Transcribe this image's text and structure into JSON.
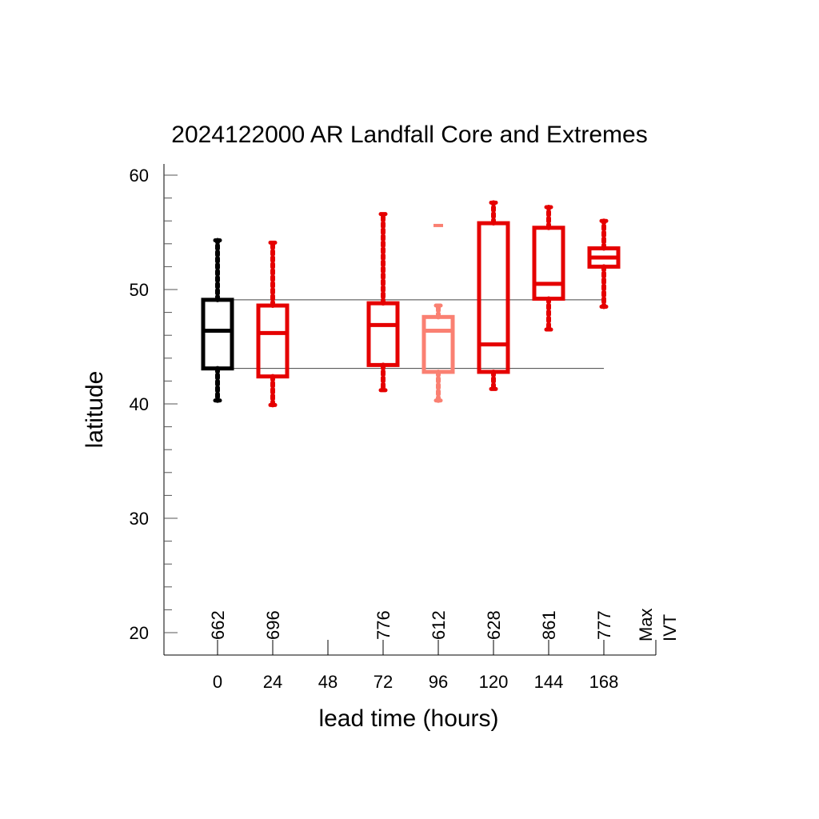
{
  "chart_data": {
    "type": "boxplot",
    "title": "2024122000 AR Landfall Core and Extremes",
    "xlabel": "lead time (hours)",
    "ylabel": "latitude",
    "ylim": [
      18,
      61
    ],
    "y_ticks": [
      "20",
      "30",
      "40",
      "50",
      "60"
    ],
    "x_ticks": [
      "0",
      "24",
      "48",
      "72",
      "96",
      "120",
      "144",
      "168"
    ],
    "reference_lines": [
      49.1,
      43.1
    ],
    "max_ivt_header": [
      "Max",
      "IVT"
    ],
    "boxes": [
      {
        "lead": 0,
        "color": "#000000",
        "whisker_low": 40.3,
        "q1": 43.1,
        "median": 46.4,
        "q3": 49.1,
        "whisker_high": 54.3,
        "max_ivt": "662"
      },
      {
        "lead": 24,
        "color": "#e50000",
        "whisker_low": 39.9,
        "q1": 42.4,
        "median": 46.2,
        "q3": 48.6,
        "whisker_high": 54.1,
        "max_ivt": "696"
      },
      {
        "lead": 48,
        "color": null,
        "whisker_low": null,
        "q1": null,
        "median": null,
        "q3": null,
        "whisker_high": null,
        "max_ivt": ""
      },
      {
        "lead": 72,
        "color": "#e50000",
        "whisker_low": 41.2,
        "q1": 43.4,
        "median": 46.9,
        "q3": 48.8,
        "whisker_high": 56.6,
        "max_ivt": "776"
      },
      {
        "lead": 96,
        "color": "#fa8072",
        "whisker_low": 40.3,
        "q1": 42.8,
        "median": 46.4,
        "q3": 47.6,
        "whisker_high": 48.6,
        "outliers": [
          55.6
        ],
        "max_ivt": "612"
      },
      {
        "lead": 120,
        "color": "#e50000",
        "whisker_low": 41.3,
        "q1": 42.8,
        "median": 45.2,
        "q3": 55.8,
        "whisker_high": 57.6,
        "max_ivt": "628"
      },
      {
        "lead": 144,
        "color": "#e50000",
        "whisker_low": 46.5,
        "q1": 49.2,
        "median": 50.5,
        "q3": 55.4,
        "whisker_high": 57.2,
        "max_ivt": "861"
      },
      {
        "lead": 168,
        "color": "#e50000",
        "whisker_low": 48.5,
        "q1": 52.0,
        "median": 52.8,
        "q3": 53.6,
        "whisker_high": 56.0,
        "max_ivt": "777"
      }
    ],
    "grid": false,
    "legend": "none"
  }
}
